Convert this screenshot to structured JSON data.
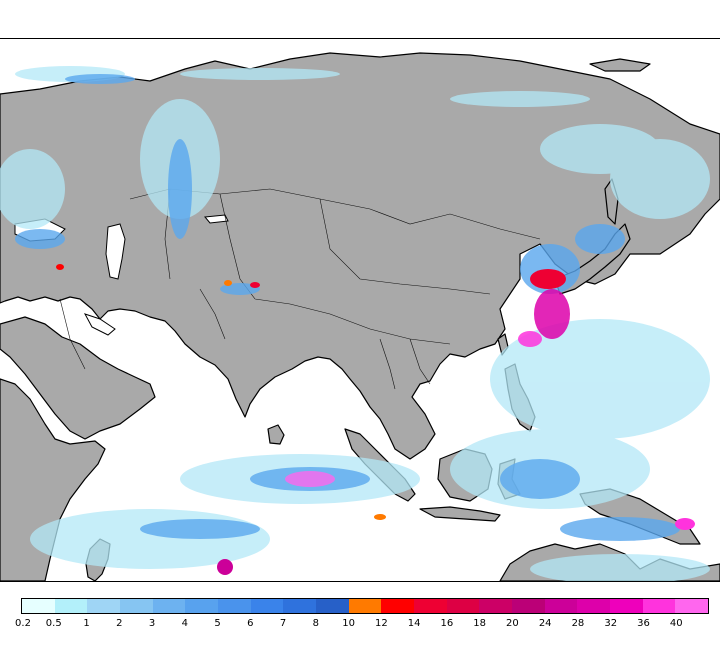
{
  "map": {
    "land_color": "#a9a9a9",
    "ocean_color": "#ffffff",
    "coast_color": "#000000"
  },
  "legend": {
    "tick_labels": [
      "0.2",
      "0.5",
      "1",
      "2",
      "3",
      "4",
      "5",
      "6",
      "7",
      "8",
      "10",
      "12",
      "14",
      "16",
      "18",
      "20",
      "24",
      "28",
      "32",
      "36",
      "40"
    ],
    "colors": [
      "#e6ffff",
      "#b3f0fa",
      "#9fd5f5",
      "#86c5f2",
      "#6db2f0",
      "#58a2ee",
      "#4a93ec",
      "#3a83ea",
      "#2f72dd",
      "#2760c8",
      "#ff7a00",
      "#ff0000",
      "#ee0033",
      "#dd0044",
      "#cc0066",
      "#bb0077",
      "#cc0099",
      "#dd00aa",
      "#ee00bb",
      "#ff33dd",
      "#ff66ee"
    ]
  }
}
